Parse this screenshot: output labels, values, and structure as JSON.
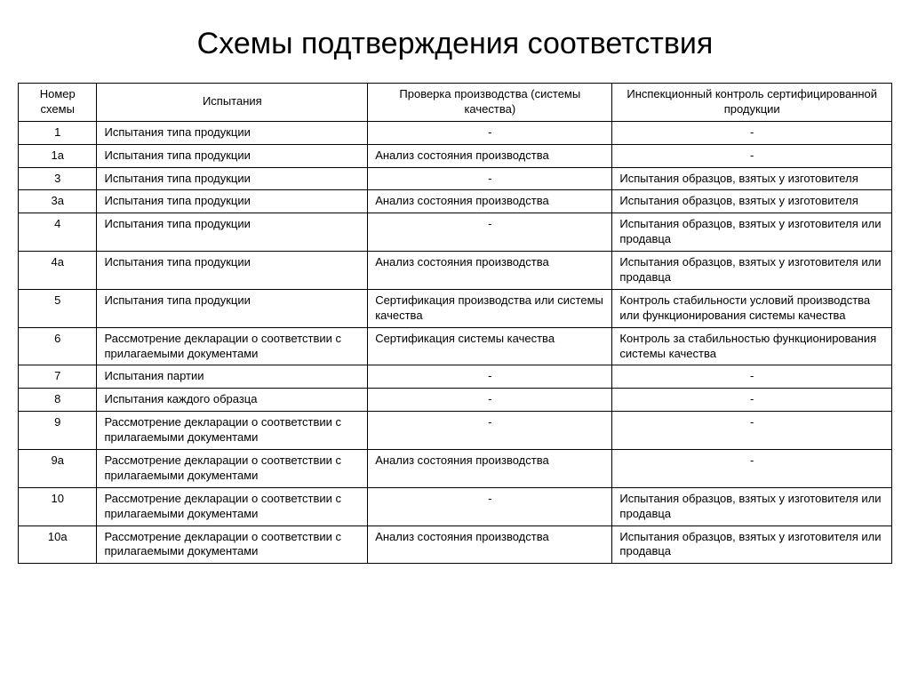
{
  "title": "Схемы подтверждения соответствия",
  "table": {
    "columns": [
      "Номер схемы",
      "Испытания",
      "Проверка производства (системы качества)",
      "Инспекционный контроль сертифицированной продукции"
    ],
    "rows": [
      {
        "num": "1",
        "c1": "Испытания типа продукции",
        "c2": "-",
        "c3": "-"
      },
      {
        "num": "1а",
        "c1": "Испытания типа продукции",
        "c2": "Анализ состояния производства",
        "c3": "-"
      },
      {
        "num": "3",
        "c1": "Испытания типа продукции",
        "c2": "-",
        "c3": "Испытания образцов, взятых у изготовителя"
      },
      {
        "num": "3а",
        "c1": "Испытания типа продукции",
        "c2": "Анализ состояния производства",
        "c3": "Испытания образцов, взятых у изготовителя"
      },
      {
        "num": "4",
        "c1": "Испытания типа продукции",
        "c2": "-",
        "c3": "Испытания образцов, взятых у изготовителя или продавца"
      },
      {
        "num": "4а",
        "c1": "Испытания типа продукции",
        "c2": "Анализ состояния производства",
        "c3": "Испытания образцов, взятых у изготовителя или продавца"
      },
      {
        "num": "5",
        "c1": "Испытания типа продукции",
        "c2": "Сертификация производства или системы качества",
        "c3": "Контроль стабильности условий производства или функционирования системы качества"
      },
      {
        "num": "6",
        "c1": "Рассмотрение декларации о соответствии с прилагаемыми документами",
        "c2": "Сертификация системы качества",
        "c3": "Контроль за стабильностью функционирования системы качества"
      },
      {
        "num": "7",
        "c1": "Испытания партии",
        "c2": "-",
        "c3": "-"
      },
      {
        "num": "8",
        "c1": "Испытания каждого образца",
        "c2": "-",
        "c3": "-"
      },
      {
        "num": "9",
        "c1": "Рассмотрение декларации о соответствии с прилагаемыми документами",
        "c2": "-",
        "c3": "-"
      },
      {
        "num": "9а",
        "c1": "Рассмотрение декларации о соответствии с прилагаемыми документами",
        "c2": "Анализ состояния производства",
        "c3": "-"
      },
      {
        "num": "10",
        "c1": "Рассмотрение декларации о соответствии с прилагаемыми документами",
        "c2": "-",
        "c3": "Испытания образцов, взятых у изготовителя или продавца"
      },
      {
        "num": "10а",
        "c1": "Рассмотрение декларации о соответствии с прилагаемыми документами",
        "c2": "Анализ состояния производства",
        "c3": "Испытания образцов, взятых у изготовителя или продавца"
      }
    ]
  },
  "style": {
    "font_family": "Arial",
    "title_fontsize": 34,
    "cell_fontsize": 13,
    "border_color": "#000000",
    "background_color": "#ffffff",
    "text_color": "#000000",
    "column_widths_pct": [
      9,
      31,
      28,
      32
    ]
  }
}
